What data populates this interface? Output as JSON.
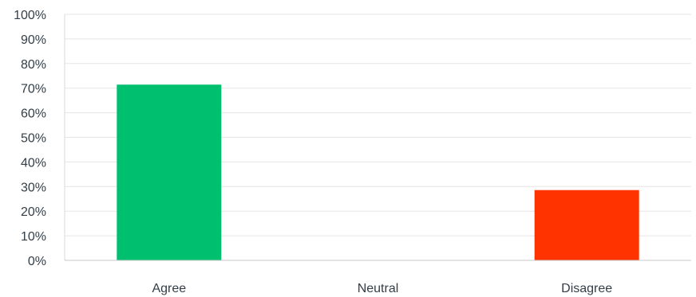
{
  "chart_data": {
    "type": "bar",
    "categories": [
      "Agree",
      "Neutral",
      "Disagree"
    ],
    "values": [
      71.43,
      0,
      28.57
    ],
    "colors": [
      "#00bf6f",
      "#a3a3a3",
      "#ff3300"
    ],
    "yticks": [
      "0%",
      "10%",
      "20%",
      "30%",
      "40%",
      "50%",
      "60%",
      "70%",
      "80%",
      "90%",
      "100%"
    ],
    "ylim": [
      0,
      100
    ],
    "grid": true,
    "title": "",
    "xlabel": "",
    "ylabel": ""
  }
}
